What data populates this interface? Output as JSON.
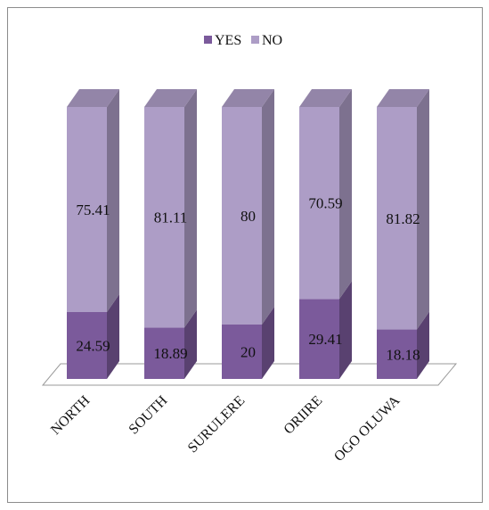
{
  "chart_data": {
    "type": "bar",
    "stacked": true,
    "percent_stacked": true,
    "three_d": true,
    "categories": [
      "NORTH",
      "SOUTH",
      "SURULERE",
      "ORIIRE",
      "OGO OLUWA"
    ],
    "series": [
      {
        "name": "YES",
        "values": [
          24.59,
          18.89,
          20,
          29.41,
          18.18
        ],
        "color": "#7b5a9b"
      },
      {
        "name": "NO",
        "values": [
          75.41,
          81.11,
          80,
          70.59,
          81.82
        ],
        "color": "#ad9dc6"
      }
    ],
    "data_labels": {
      "YES": [
        "24.59",
        "18.89",
        "20",
        "29.41",
        "18.18"
      ],
      "NO": [
        "75.41",
        "81.11",
        "80",
        "70.59",
        "81.82"
      ]
    },
    "legend_position": "top-center",
    "ylim": [
      0,
      100
    ],
    "axis_visible": false,
    "grid": false
  }
}
